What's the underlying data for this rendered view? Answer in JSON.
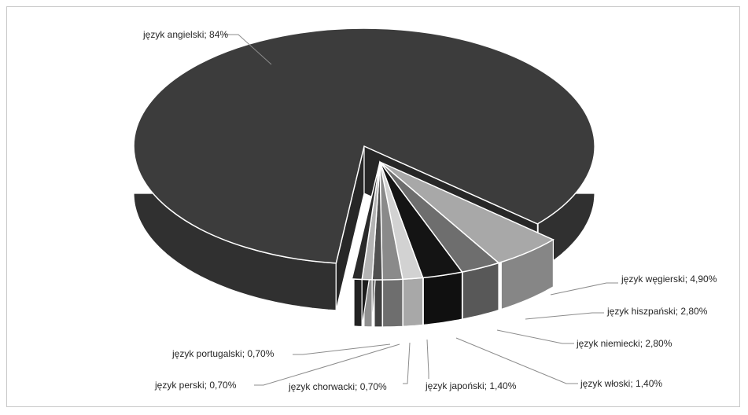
{
  "chart_data": {
    "type": "pie",
    "style": "3d-exploded",
    "legend": "none",
    "title": "",
    "slices": [
      {
        "name": "język angielski",
        "value": 84.0,
        "label": "język angielski; 84%",
        "color": "#3c3c3c"
      },
      {
        "name": "język węgierski",
        "value": 4.9,
        "label": "język węgierski; 4,90%",
        "color": "#a8a8a8"
      },
      {
        "name": "język hiszpański",
        "value": 2.8,
        "label": "język hiszpański; 2,80%",
        "color": "#6e6e6e"
      },
      {
        "name": "język niemiecki",
        "value": 2.8,
        "label": "język niemiecki; 2,80%",
        "color": "#141414"
      },
      {
        "name": "język włoski",
        "value": 1.4,
        "label": "język włoski; 1,40%",
        "color": "#d2d2d2"
      },
      {
        "name": "język japoński",
        "value": 1.4,
        "label": "język japoński; 1,40%",
        "color": "#8a8a8a"
      },
      {
        "name": "język chorwacki",
        "value": 0.7,
        "label": "język chorwacki; 0,70%",
        "color": "#505050"
      },
      {
        "name": "język perski",
        "value": 0.7,
        "label": "język perski; 0,70%",
        "color": "#b4b4b4"
      },
      {
        "name": "język portugalski",
        "value": 0.7,
        "label": "język portugalski; 0,70%",
        "color": "#2a2a2a"
      }
    ]
  }
}
